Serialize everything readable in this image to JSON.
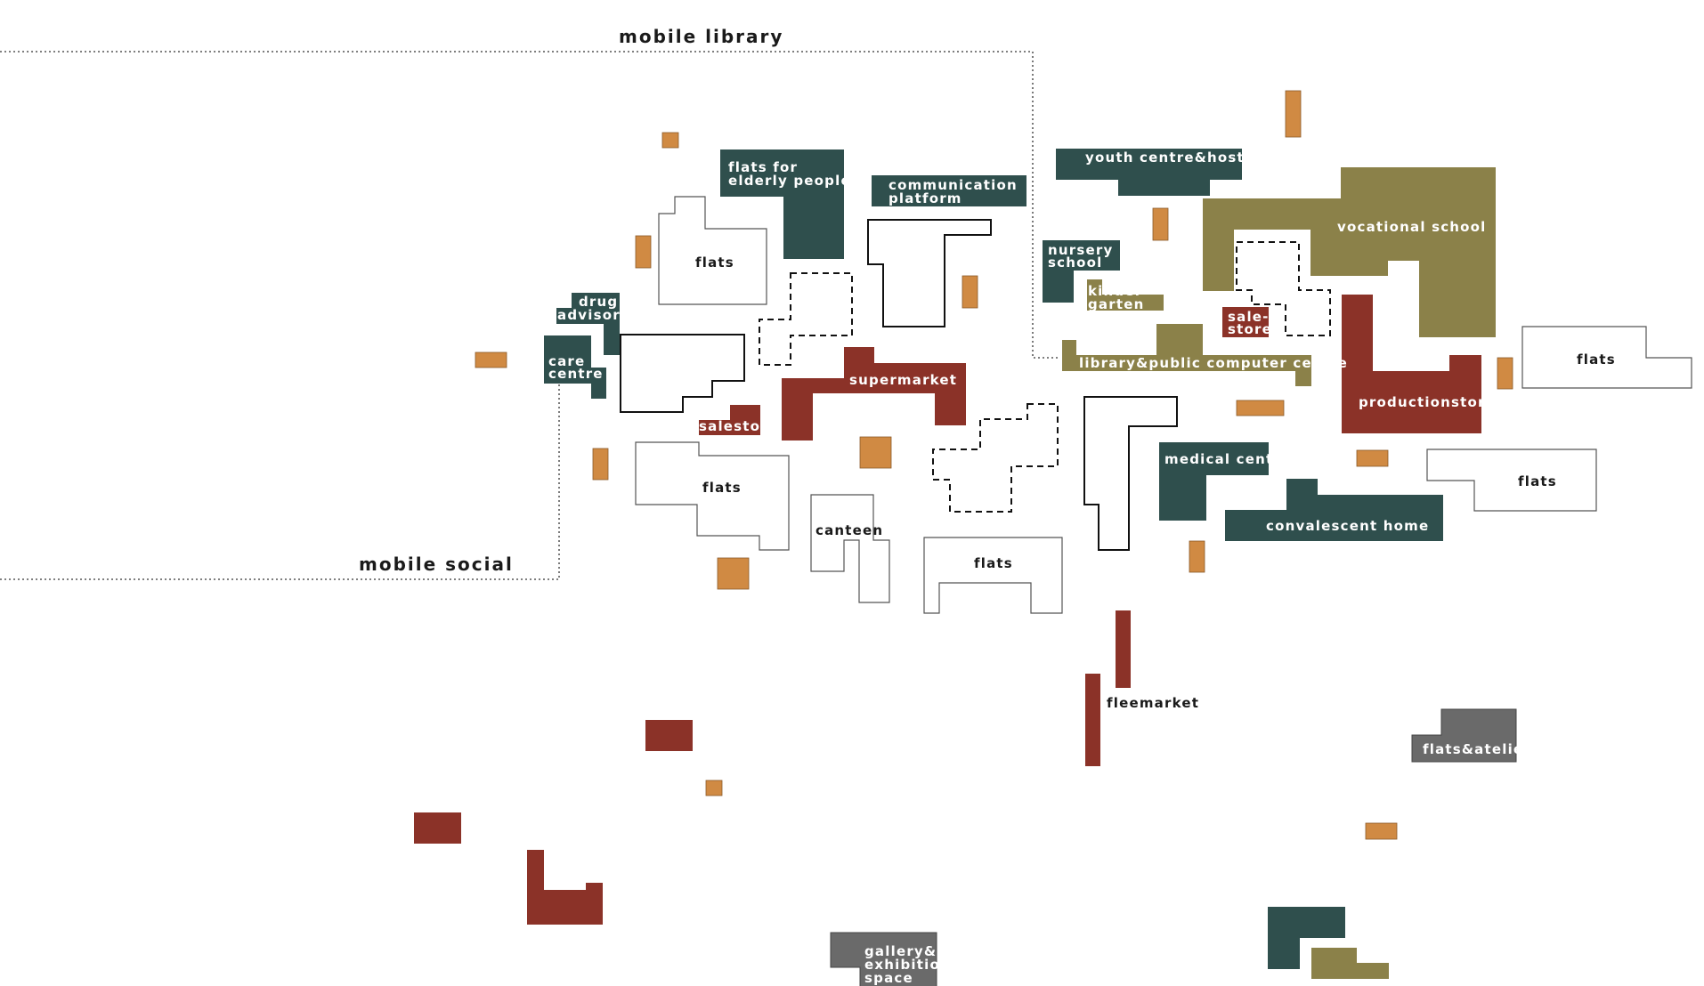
{
  "colors": {
    "teal": "#2f4f4d",
    "olive": "#8b8149",
    "red": "#8b3228",
    "orange": "#d08a43",
    "gray": "#6a6a6a",
    "outline": "#000000"
  },
  "zones": {
    "mobile_library": "mobile library",
    "mobile_social": "mobile social"
  },
  "labels": {
    "flats_for_elderly_1": "flats for",
    "flats_for_elderly_2": "elderly people",
    "communication_1": "communication",
    "communication_2": "platform",
    "youth_centre": "youth centre&hostel",
    "vocational_school": "vocational school",
    "nursery_1": "nursery",
    "nursery_2": "school",
    "kindergarten_1": "kinder-",
    "kindergarten_2": "garten",
    "salestore_small_1": "sale-",
    "salestore_small_2": "store",
    "library_computer": "library&public computer centre",
    "drug_1": "drug",
    "drug_2": "advisory",
    "care_1": "care",
    "care_2": "centre",
    "flats_a": "flats",
    "flats_b": "flats",
    "flats_c": "flats",
    "flats_d": "flats",
    "flats_e": "flats",
    "supermarket": "supermarket",
    "salestore": "salestore",
    "productionstore": "productionstore",
    "medical_centre": "medical centre",
    "convalescent_home": "convalescent home",
    "canteen": "canteen",
    "fleemarket": "fleemarket",
    "flats_atelier": "flats&atelier",
    "gallery_1": "gallery&",
    "gallery_2": "exhibition-",
    "gallery_3": "space"
  }
}
